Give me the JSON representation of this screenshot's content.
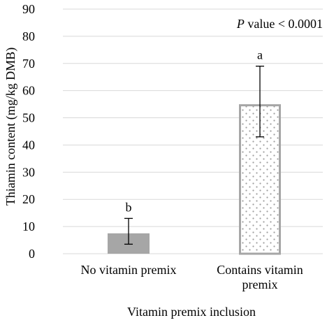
{
  "chart_data": {
    "type": "bar",
    "categories": [
      [
        "No vitamin premix"
      ],
      [
        "Contains vitamin",
        "premix"
      ]
    ],
    "values": [
      7.5,
      55.0
    ],
    "error_bars": [
      {
        "low": 3.5,
        "high": 13.0
      },
      {
        "low": 43.0,
        "high": 69.0
      }
    ],
    "significance_letters": [
      "b",
      "a"
    ],
    "bar_styles": [
      {
        "fill": "#a6a6a6",
        "pattern": "solid"
      },
      {
        "fill": "#ffffff",
        "stroke": "#a6a6a6",
        "pattern": "dots",
        "dot_color": "#9e9e9e"
      }
    ],
    "xlabel": "Vitamin premix inclusion",
    "ylabel": "Thiamin content (mg/kg DMB)",
    "ylim": [
      0,
      90
    ],
    "yticks": [
      0,
      10,
      20,
      30,
      40,
      50,
      60,
      70,
      80,
      90
    ],
    "grid": "horizontal",
    "grid_color": "#d9d9d9",
    "annotation": {
      "italic_part": "P",
      "rest": " value < 0.0001"
    }
  }
}
